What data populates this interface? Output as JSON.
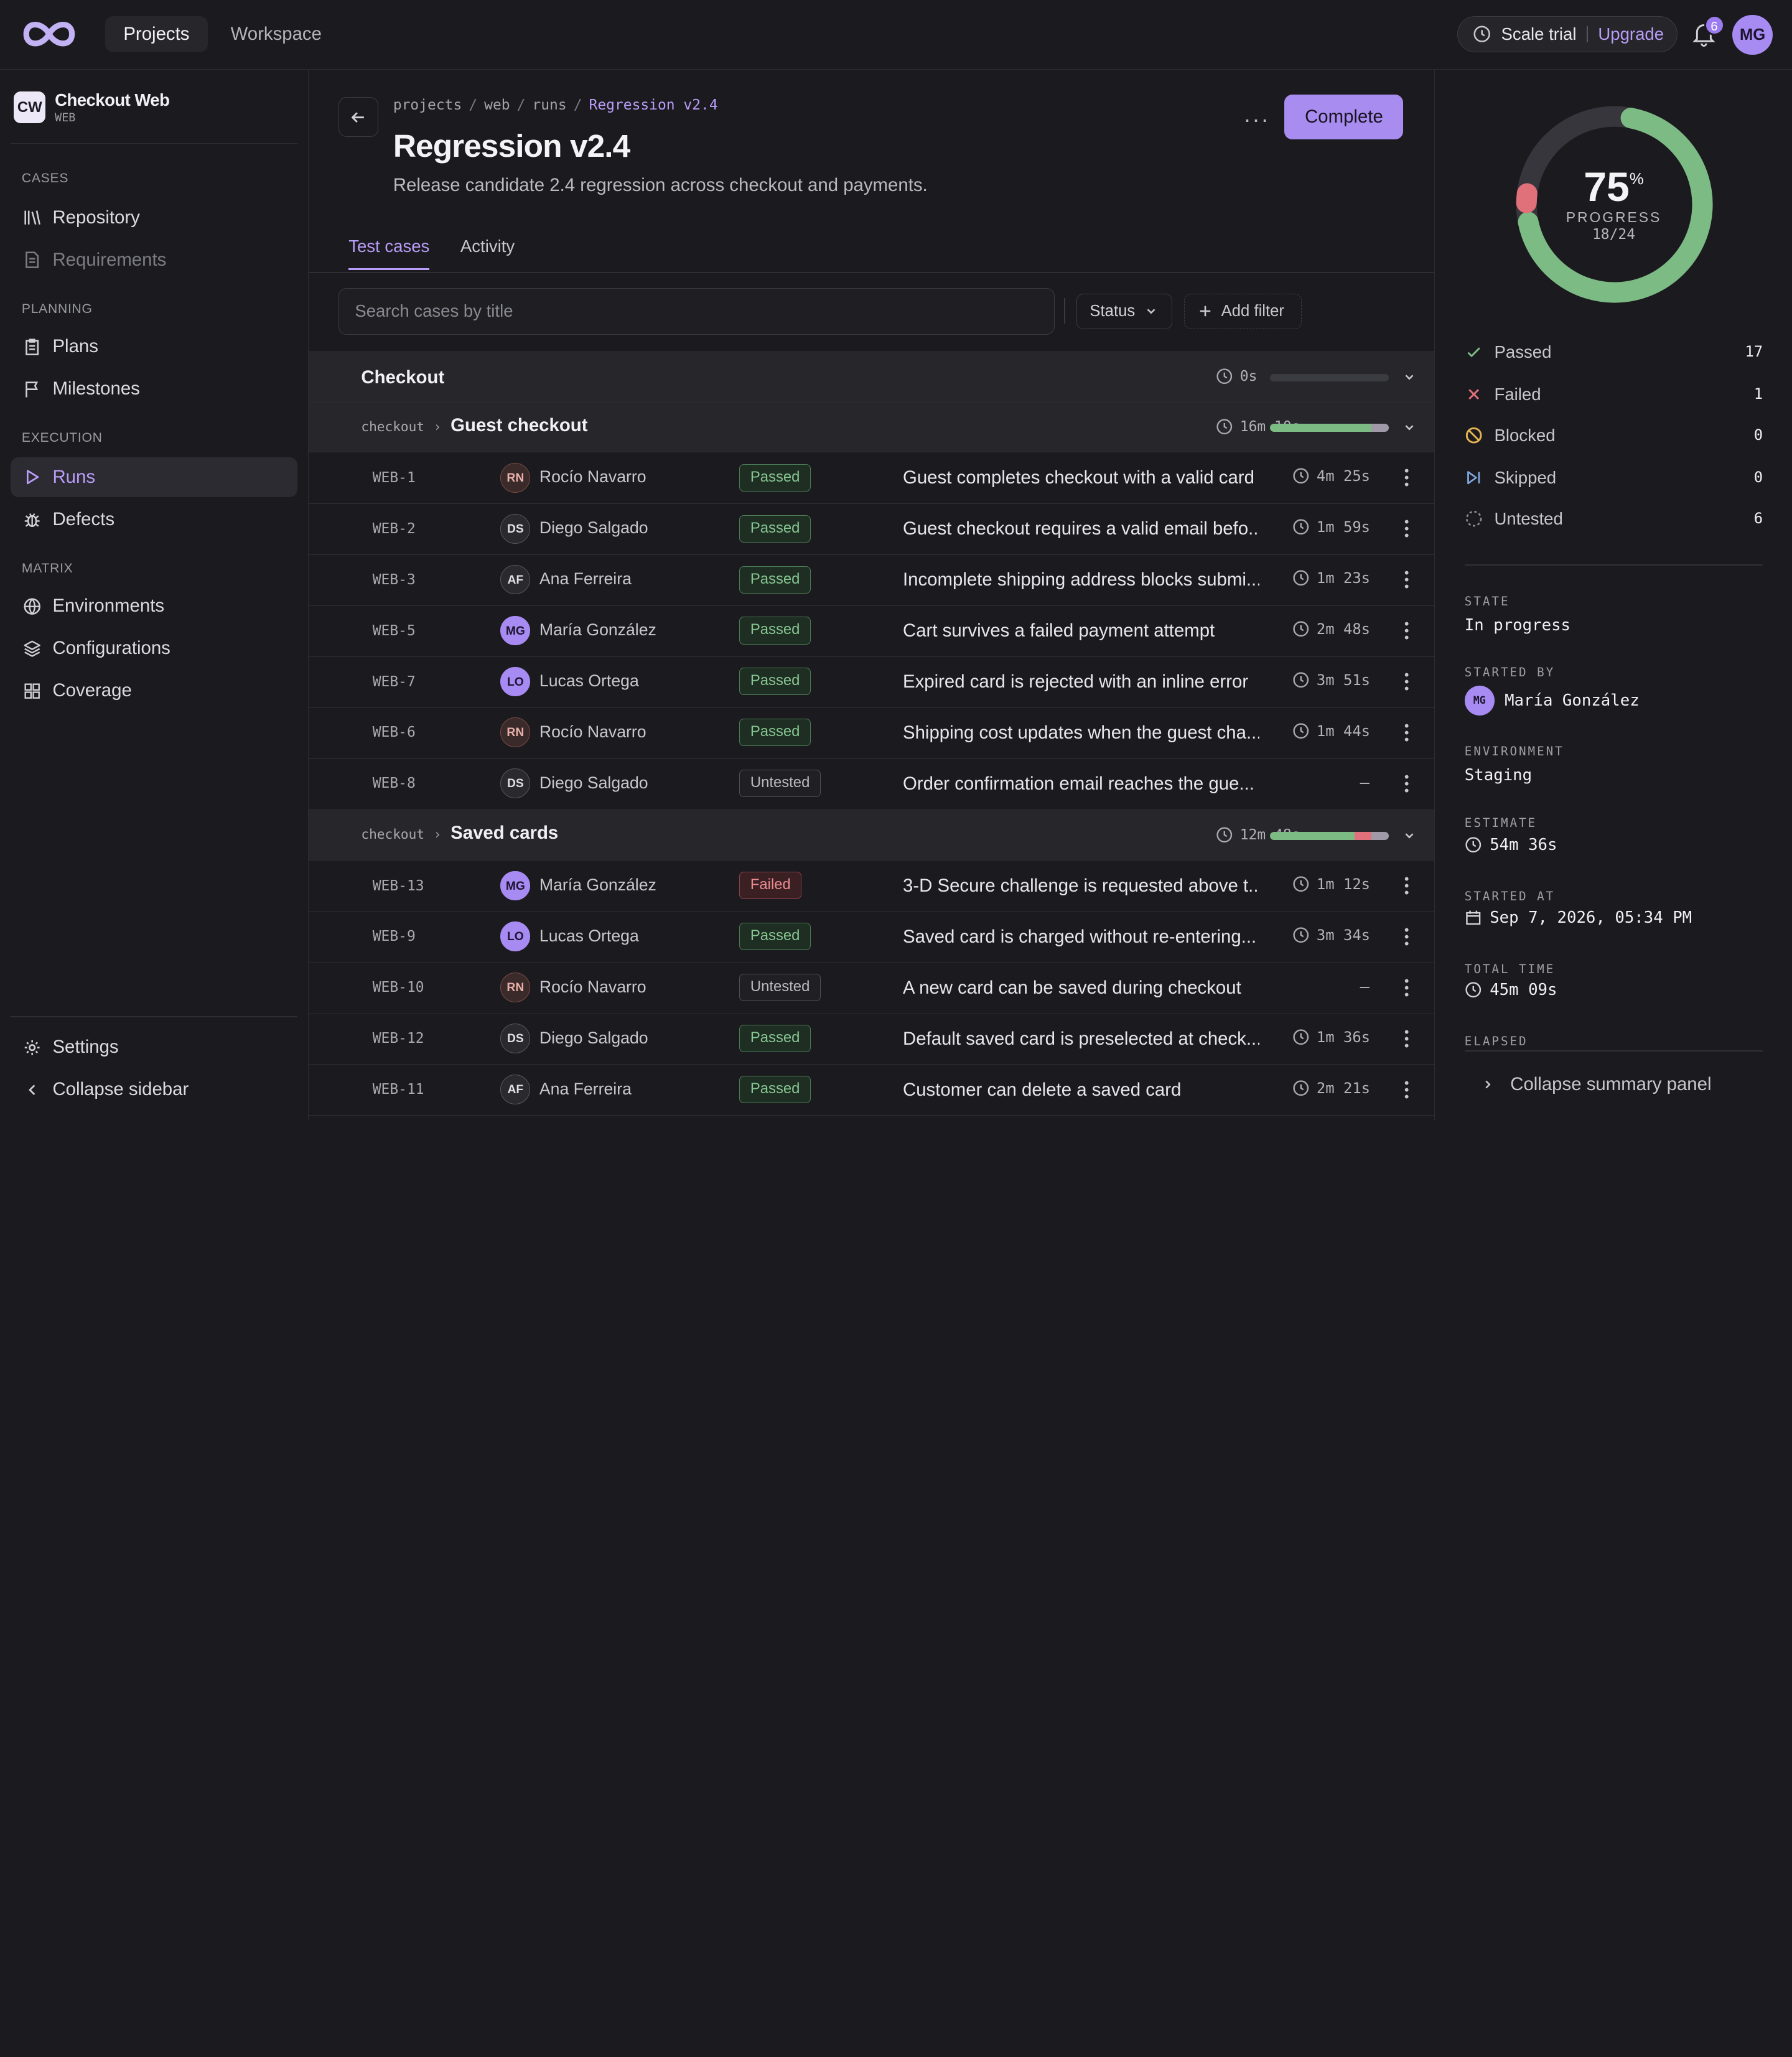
{
  "topbar": {
    "nav": [
      "Projects",
      "Workspace"
    ],
    "trial_label": "Scale trial",
    "upgrade_label": "Upgrade",
    "notification_count": "6",
    "user_initials": "MG"
  },
  "sidebar": {
    "project_badge": "CW",
    "project_name": "Checkout Web",
    "project_code": "WEB",
    "sections": {
      "cases": "CASES",
      "planning": "PLANNING",
      "execution": "EXECUTION",
      "matrix": "MATRIX"
    },
    "items": {
      "repository": "Repository",
      "requirements": "Requirements",
      "plans": "Plans",
      "milestones": "Milestones",
      "runs": "Runs",
      "defects": "Defects",
      "environments": "Environments",
      "configurations": "Configurations",
      "coverage": "Coverage"
    },
    "settings": "Settings",
    "collapse": "Collapse sidebar"
  },
  "main": {
    "breadcrumb": [
      "projects",
      "web",
      "runs",
      "Regression v2.4"
    ],
    "title": "Regression v2.4",
    "description": "Release candidate 2.4 regression across checkout and payments.",
    "complete_label": "Complete",
    "tabs": [
      "Test cases",
      "Activity"
    ],
    "search_placeholder": "Search cases by title",
    "status_filter": "Status",
    "add_filter": "Add filter"
  },
  "groups": {
    "checkout": {
      "title": "Checkout",
      "time": "0s",
      "progress": 0
    },
    "guest": {
      "path": "checkout",
      "title": "Guest checkout",
      "time": "16m 10s",
      "passed_fraction": 0.857,
      "untested_fraction": 0.143
    },
    "saved": {
      "path": "checkout",
      "title": "Saved cards",
      "time": "12m 48s",
      "passed_fraction": 0.714,
      "failed_fraction": 0.143,
      "untested_fraction": 0.143
    }
  },
  "rows_guest": [
    {
      "id": "WEB-1",
      "initials": "RN",
      "assignee": "Rocío Navarro",
      "status": "Passed",
      "title": "Guest completes checkout with a valid card",
      "time": "4m 25s"
    },
    {
      "id": "WEB-2",
      "initials": "DS",
      "assignee": "Diego Salgado",
      "status": "Passed",
      "title": "Guest checkout requires a valid email befo...",
      "time": "1m 59s"
    },
    {
      "id": "WEB-3",
      "initials": "AF",
      "assignee": "Ana Ferreira",
      "status": "Passed",
      "title": "Incomplete shipping address blocks submi...",
      "time": "1m 23s"
    },
    {
      "id": "WEB-5",
      "initials": "MG",
      "assignee": "María González",
      "status": "Passed",
      "title": "Cart survives a failed payment attempt",
      "time": "2m 48s"
    },
    {
      "id": "WEB-7",
      "initials": "LO",
      "assignee": "Lucas Ortega",
      "status": "Passed",
      "title": "Expired card is rejected with an inline error",
      "time": "3m 51s"
    },
    {
      "id": "WEB-6",
      "initials": "RN",
      "assignee": "Rocío Navarro",
      "status": "Passed",
      "title": "Shipping cost updates when the guest cha...",
      "time": "1m 44s"
    },
    {
      "id": "WEB-8",
      "initials": "DS",
      "assignee": "Diego Salgado",
      "status": "Untested",
      "title": "Order confirmation email reaches the gue...",
      "time": "–"
    }
  ],
  "rows_saved": [
    {
      "id": "WEB-13",
      "initials": "MG",
      "assignee": "María González",
      "status": "Failed",
      "title": "3-D Secure challenge is requested above t...",
      "time": "1m 12s"
    },
    {
      "id": "WEB-9",
      "initials": "LO",
      "assignee": "Lucas Ortega",
      "status": "Passed",
      "title": "Saved card is charged without re-entering...",
      "time": "3m 34s"
    },
    {
      "id": "WEB-10",
      "initials": "RN",
      "assignee": "Rocío Navarro",
      "status": "Untested",
      "title": "A new card can be saved during checkout",
      "time": "–"
    },
    {
      "id": "WEB-12",
      "initials": "DS",
      "assignee": "Diego Salgado",
      "status": "Passed",
      "title": "Default saved card is preselected at check...",
      "time": "1m 36s"
    },
    {
      "id": "WEB-11",
      "initials": "AF",
      "assignee": "Ana Ferreira",
      "status": "Passed",
      "title": "Customer can delete a saved card",
      "time": "2m 21s"
    }
  ],
  "summary": {
    "percent": "75",
    "percent_sign": "%",
    "progress_label": "PROGRESS",
    "progress_count": "18/24",
    "passed_fraction": 0.708,
    "failed_fraction": 0.042,
    "stats": [
      {
        "label": "Passed",
        "count": "17"
      },
      {
        "label": "Failed",
        "count": "1"
      },
      {
        "label": "Blocked",
        "count": "0"
      },
      {
        "label": "Skipped",
        "count": "0"
      },
      {
        "label": "Untested",
        "count": "6"
      }
    ],
    "state_label": "STATE",
    "state": "In progress",
    "started_by_label": "STARTED BY",
    "started_by_initials": "MG",
    "started_by": "María González",
    "environment_label": "ENVIRONMENT",
    "environment": "Staging",
    "estimate_label": "ESTIMATE",
    "estimate": "54m 36s",
    "started_at_label": "STARTED AT",
    "started_at": "Sep 7, 2026, 05:34 PM",
    "total_time_label": "TOTAL TIME",
    "total_time": "45m 09s",
    "elapsed_label": "ELAPSED",
    "collapse_label": "Collapse summary panel"
  },
  "colors": {
    "accent": "#b99cf7",
    "passed": "#7dbb84",
    "failed": "#e0707a",
    "untested": "#9a9aa4"
  }
}
